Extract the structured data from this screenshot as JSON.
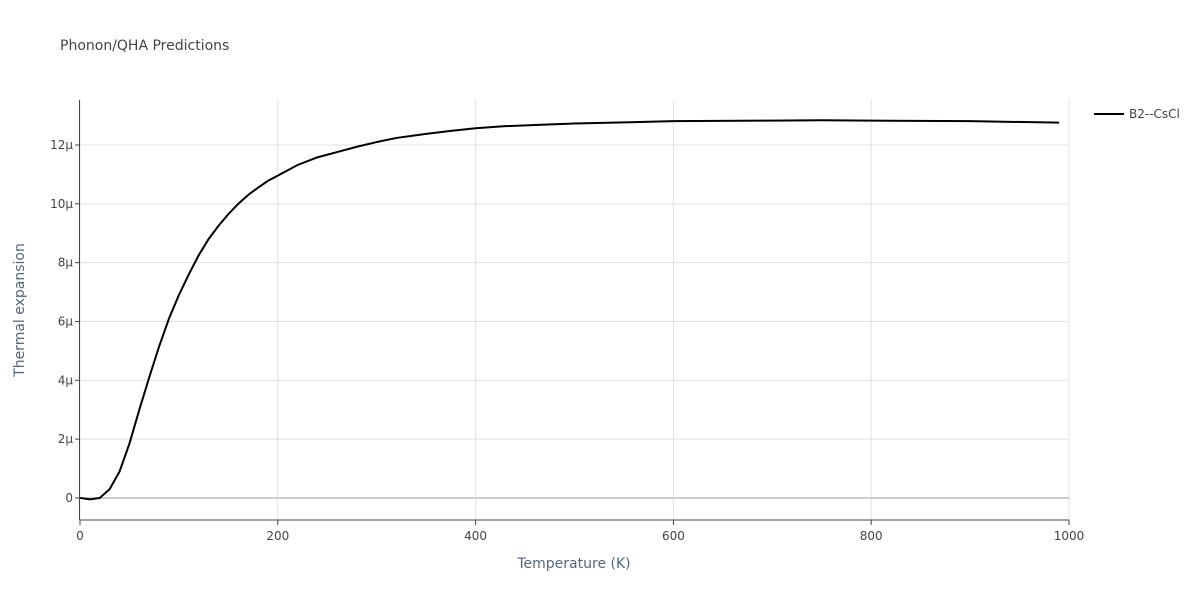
{
  "chart_data": {
    "type": "line",
    "title": "Phonon/QHA Predictions",
    "x_label": "Temperature (K)",
    "y_label": "Thermal expansion",
    "x": [
      0,
      10,
      20,
      30,
      40,
      50,
      60,
      70,
      80,
      90,
      100,
      110,
      120,
      130,
      140,
      150,
      160,
      170,
      180,
      190,
      200,
      220,
      240,
      260,
      280,
      300,
      320,
      350,
      375,
      400,
      430,
      460,
      500,
      550,
      600,
      700,
      750,
      800,
      900,
      990
    ],
    "series": [
      {
        "name": "B2--CsCl",
        "color": "#000000",
        "values": [
          0.0,
          -5e-08,
          0.0,
          3e-07,
          9e-07,
          1.85e-06,
          3e-06,
          4.1e-06,
          5.15e-06,
          6.1e-06,
          6.9e-06,
          7.6e-06,
          8.25e-06,
          8.8e-06,
          9.25e-06,
          9.65e-06,
          1e-05,
          1.03e-05,
          1.055e-05,
          1.078e-05,
          1.096e-05,
          1.132e-05,
          1.158e-05,
          1.176e-05,
          1.194e-05,
          1.21e-05,
          1.224e-05,
          1.238e-05,
          1.248e-05,
          1.257e-05,
          1.264e-05,
          1.268e-05,
          1.273e-05,
          1.277e-05,
          1.281e-05,
          1.283e-05,
          1.284e-05,
          1.283e-05,
          1.281e-05,
          1.276e-05
        ]
      }
    ],
    "xlim": [
      0,
      1000
    ],
    "xticks": [
      0,
      200,
      400,
      600,
      800,
      1000
    ],
    "ylim": [
      -7.5e-07,
      1.353e-05
    ],
    "yticks": [
      0,
      {
        "value": 2e-06,
        "label": "2µ"
      },
      {
        "value": 4e-06,
        "label": "4µ"
      },
      {
        "value": 6e-06,
        "label": "6µ"
      },
      {
        "value": 8e-06,
        "label": "8µ"
      },
      {
        "value": 1e-05,
        "label": "10µ"
      },
      {
        "value": 1.2e-05,
        "label": "12µ"
      }
    ],
    "grid": true,
    "legend": "right"
  }
}
